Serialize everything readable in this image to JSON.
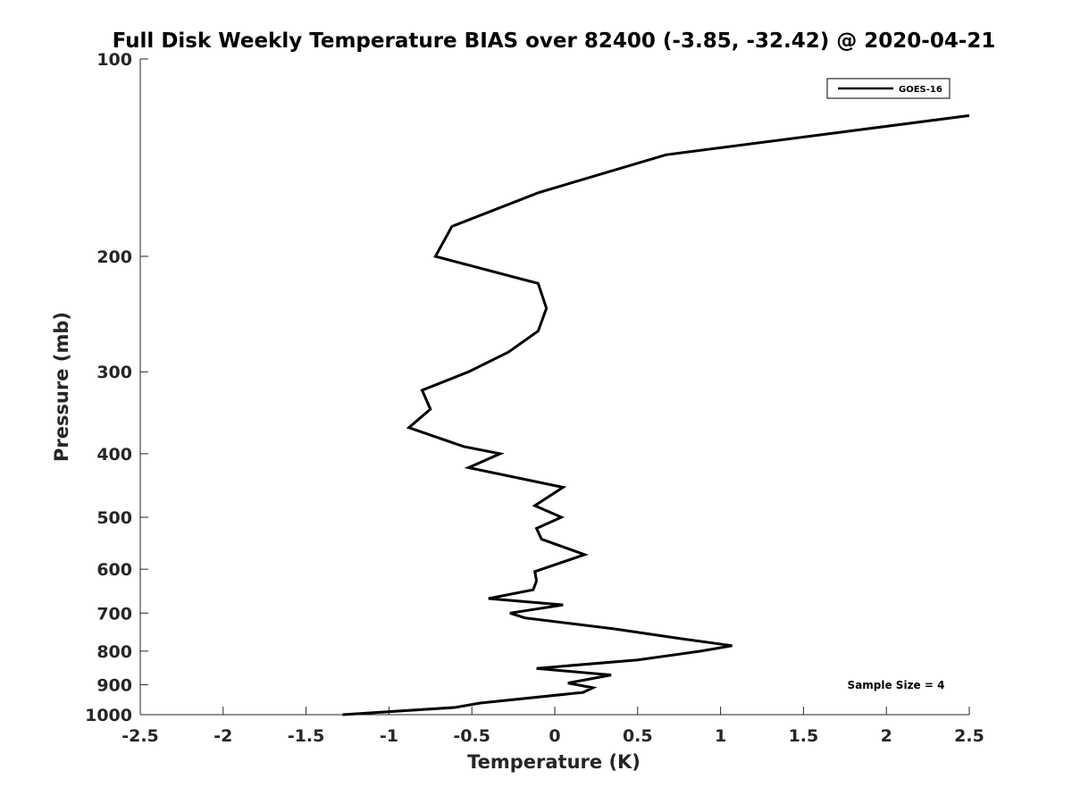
{
  "chart_data": {
    "type": "line",
    "title": "Full Disk Weekly Temperature BIAS over 82400 (-3.85, -32.42) @ 2020-04-21",
    "xlabel": "Temperature (K)",
    "ylabel": "Pressure (mb)",
    "xlim": [
      -2.5,
      2.5
    ],
    "ylim": [
      100,
      1000
    ],
    "y_scale": "log",
    "y_reversed": true,
    "grid": false,
    "x_ticks": [
      -2.5,
      -2,
      -1.5,
      -1,
      -0.5,
      0,
      0.5,
      1,
      1.5,
      2,
      2.5
    ],
    "x_tick_labels": [
      "-2.5",
      "-2",
      "-1.5",
      "-1",
      "-0.5",
      "0",
      "0.5",
      "1",
      "1.5",
      "2",
      "2.5"
    ],
    "y_ticks": [
      100,
      200,
      300,
      400,
      500,
      600,
      700,
      800,
      900,
      1000
    ],
    "y_tick_labels": [
      "100",
      "200",
      "300",
      "400",
      "500",
      "600",
      "700",
      "800",
      "900",
      "1000"
    ],
    "legend": {
      "placement": "top-right",
      "entries": [
        "GOES-16"
      ]
    },
    "annotation": "Sample Size = 4",
    "series": [
      {
        "name": "GOES-16",
        "color": "#000000",
        "points": [
          [
            2.5,
            122
          ],
          [
            0.67,
            140
          ],
          [
            -0.1,
            160
          ],
          [
            -0.62,
            180
          ],
          [
            -0.72,
            200
          ],
          [
            -0.1,
            220
          ],
          [
            -0.05,
            240
          ],
          [
            -0.1,
            260
          ],
          [
            -0.28,
            280
          ],
          [
            -0.52,
            300
          ],
          [
            -0.8,
            320
          ],
          [
            -0.75,
            342
          ],
          [
            -0.88,
            365
          ],
          [
            -0.55,
            390
          ],
          [
            -0.33,
            400
          ],
          [
            -0.52,
            420
          ],
          [
            0.05,
            450
          ],
          [
            -0.12,
            480
          ],
          [
            0.04,
            500
          ],
          [
            -0.11,
            520
          ],
          [
            -0.08,
            540
          ],
          [
            0.18,
            570
          ],
          [
            0.05,
            585
          ],
          [
            -0.12,
            605
          ],
          [
            -0.11,
            625
          ],
          [
            -0.13,
            645
          ],
          [
            -0.4,
            665
          ],
          [
            0.05,
            680
          ],
          [
            -0.27,
            700
          ],
          [
            -0.18,
            712
          ],
          [
            0.36,
            740
          ],
          [
            0.75,
            765
          ],
          [
            1.07,
            785
          ],
          [
            0.88,
            800
          ],
          [
            0.5,
            825
          ],
          [
            -0.11,
            850
          ],
          [
            0.34,
            870
          ],
          [
            0.08,
            895
          ],
          [
            0.23,
            910
          ],
          [
            0.17,
            925
          ],
          [
            -0.45,
            960
          ],
          [
            -0.6,
            975
          ],
          [
            -1.28,
            1000
          ]
        ]
      }
    ]
  }
}
